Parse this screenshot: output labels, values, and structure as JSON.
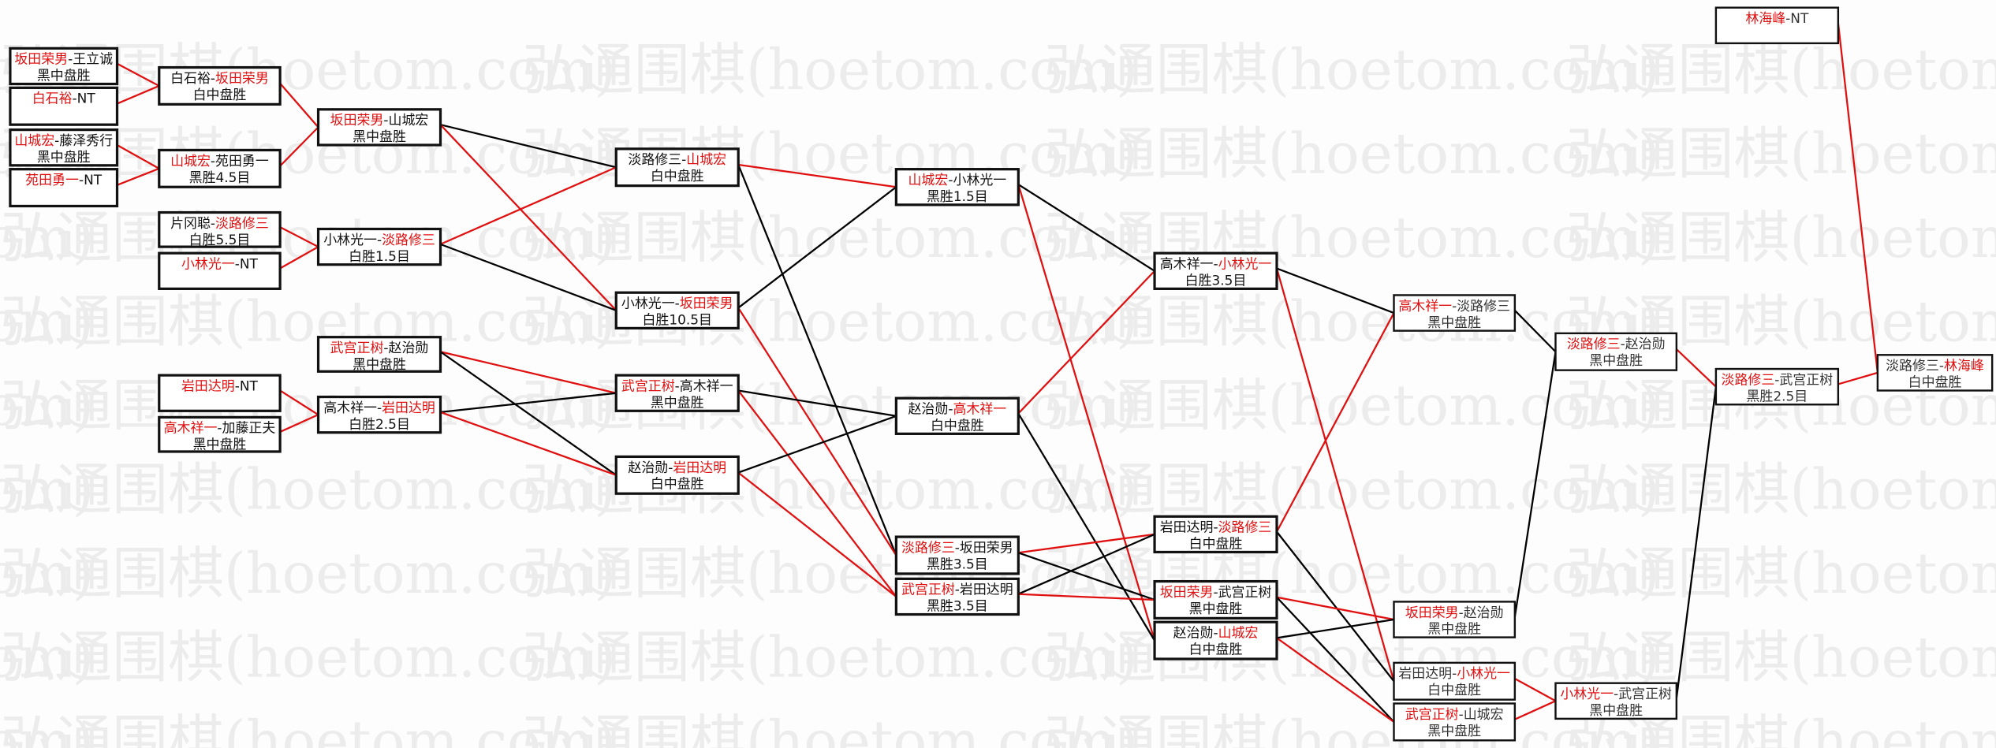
{
  "watermark": "弘通围棋(hoetom.com)",
  "colors": {
    "winner": "#e01010",
    "loser_line": "#000000",
    "winner_line": "#e01010",
    "box_border": "#111111"
  },
  "matches": {
    "A1": {
      "p1": "坂田荣男",
      "p2": "王立诚",
      "winner": 1,
      "result": "黑中盘胜"
    },
    "A2": {
      "p1": "白石裕",
      "p2": "NT",
      "winner": 1,
      "result": ""
    },
    "A3": {
      "p1": "山城宏",
      "p2": "藤泽秀行",
      "winner": 1,
      "result": "黑中盘胜"
    },
    "A4": {
      "p1": "苑田勇一",
      "p2": "NT",
      "winner": 1,
      "result": ""
    },
    "B1": {
      "p1": "白石裕",
      "p2": "坂田荣男",
      "winner": 2,
      "result": "白中盘胜"
    },
    "B2": {
      "p1": "山城宏",
      "p2": "苑田勇一",
      "winner": 1,
      "result": "黑胜4.5目"
    },
    "B3": {
      "p1": "片冈聪",
      "p2": "淡路修三",
      "winner": 2,
      "result": "白胜5.5目"
    },
    "B4": {
      "p1": "小林光一",
      "p2": "NT",
      "winner": 1,
      "result": ""
    },
    "B5": {
      "p1": "武宫正树",
      "p2": "赵治勋",
      "winner": 1,
      "result": "黑中盘胜"
    },
    "B6": {
      "p1": "岩田达明",
      "p2": "NT",
      "winner": 1,
      "result": ""
    },
    "B7": {
      "p1": "高木祥一",
      "p2": "加藤正夫",
      "winner": 1,
      "result": "黑中盘胜"
    },
    "C1": {
      "p1": "坂田荣男",
      "p2": "山城宏",
      "winner": 1,
      "result": "黑中盘胜"
    },
    "C2": {
      "p1": "小林光一",
      "p2": "淡路修三",
      "winner": 2,
      "result": "白胜1.5目"
    },
    "C3": {
      "p1": "高木祥一",
      "p2": "岩田达明",
      "winner": 2,
      "result": "白胜2.5目"
    },
    "D1": {
      "p1": "淡路修三",
      "p2": "山城宏",
      "winner": 2,
      "result": "白中盘胜"
    },
    "D2": {
      "p1": "小林光一",
      "p2": "坂田荣男",
      "winner": 2,
      "result": "白胜10.5目"
    },
    "D3": {
      "p1": "武宫正树",
      "p2": "高木祥一",
      "winner": 1,
      "result": "黑中盘胜"
    },
    "D4": {
      "p1": "赵治勋",
      "p2": "岩田达明",
      "winner": 2,
      "result": "白中盘胜"
    },
    "E1": {
      "p1": "山城宏",
      "p2": "小林光一",
      "winner": 1,
      "result": "黑胜1.5目"
    },
    "E2": {
      "p1": "赵治勋",
      "p2": "高木祥一",
      "winner": 2,
      "result": "白中盘胜"
    },
    "E3": {
      "p1": "淡路修三",
      "p2": "坂田荣男",
      "winner": 1,
      "result": "黑胜3.5目"
    },
    "E4": {
      "p1": "武宫正树",
      "p2": "岩田达明",
      "winner": 1,
      "result": "黑胜3.5目"
    },
    "F1": {
      "p1": "高木祥一",
      "p2": "小林光一",
      "winner": 2,
      "result": "白胜3.5目"
    },
    "F2": {
      "p1": "岩田达明",
      "p2": "淡路修三",
      "winner": 2,
      "result": "白中盘胜"
    },
    "F3": {
      "p1": "坂田荣男",
      "p2": "武宫正树",
      "winner": 1,
      "result": "黑中盘胜"
    },
    "F4": {
      "p1": "赵治勋",
      "p2": "山城宏",
      "winner": 2,
      "result": "白中盘胜"
    },
    "G1": {
      "p1": "高木祥一",
      "p2": "淡路修三",
      "winner": 1,
      "result": "黑中盘胜"
    },
    "G2": {
      "p1": "坂田荣男",
      "p2": "赵治勋",
      "winner": 1,
      "result": "黑中盘胜"
    },
    "G3": {
      "p1": "岩田达明",
      "p2": "小林光一",
      "winner": 2,
      "result": "白中盘胜"
    },
    "G4": {
      "p1": "武宫正树",
      "p2": "山城宏",
      "winner": 1,
      "result": "黑中盘胜"
    },
    "H1": {
      "p1": "淡路修三",
      "p2": "赵治勋",
      "winner": 1,
      "result": "黑中盘胜"
    },
    "H2": {
      "p1": "小林光一",
      "p2": "武宫正树",
      "winner": 1,
      "result": "黑中盘胜"
    },
    "I0": {
      "p1": "林海峰",
      "p2": "NT",
      "winner": 1,
      "result": ""
    },
    "I1": {
      "p1": "淡路修三",
      "p2": "武宫正树",
      "winner": 1,
      "result": "黑胜2.5目"
    },
    "J1": {
      "p1": "淡路修三",
      "p2": "林海峰",
      "winner": 2,
      "result": "白中盘胜"
    }
  },
  "links": [
    [
      "A1",
      "B1",
      "win"
    ],
    [
      "A2",
      "B1",
      "win"
    ],
    [
      "A3",
      "B2",
      "win"
    ],
    [
      "A4",
      "B2",
      "win"
    ],
    [
      "B1",
      "C1",
      "win"
    ],
    [
      "B2",
      "C1",
      "win"
    ],
    [
      "B3",
      "C2",
      "win"
    ],
    [
      "B4",
      "C2",
      "win"
    ],
    [
      "B6",
      "C3",
      "win"
    ],
    [
      "B7",
      "C3",
      "win"
    ],
    [
      "C1",
      "D1",
      "lose"
    ],
    [
      "C1",
      "D2",
      "win"
    ],
    [
      "C2",
      "D1",
      "win"
    ],
    [
      "C2",
      "D2",
      "lose"
    ],
    [
      "B5",
      "D3",
      "win"
    ],
    [
      "B5",
      "D4",
      "lose"
    ],
    [
      "C3",
      "D3",
      "lose"
    ],
    [
      "C3",
      "D4",
      "win"
    ],
    [
      "D1",
      "E1",
      "win"
    ],
    [
      "D1",
      "E3",
      "lose"
    ],
    [
      "D2",
      "E1",
      "lose"
    ],
    [
      "D2",
      "E3",
      "win"
    ],
    [
      "D3",
      "E2",
      "lose"
    ],
    [
      "D3",
      "E4",
      "win"
    ],
    [
      "D4",
      "E2",
      "lose"
    ],
    [
      "D4",
      "E4",
      "win"
    ],
    [
      "E1",
      "F1",
      "lose"
    ],
    [
      "E1",
      "F4",
      "win"
    ],
    [
      "E2",
      "F1",
      "win"
    ],
    [
      "E2",
      "F4",
      "lose"
    ],
    [
      "E3",
      "F2",
      "win"
    ],
    [
      "E3",
      "F3",
      "lose"
    ],
    [
      "E4",
      "F2",
      "lose"
    ],
    [
      "E4",
      "F3",
      "win"
    ],
    [
      "F1",
      "G1",
      "lose"
    ],
    [
      "F1",
      "G3",
      "win"
    ],
    [
      "F2",
      "G1",
      "win"
    ],
    [
      "F2",
      "G3",
      "lose"
    ],
    [
      "F3",
      "G2",
      "win"
    ],
    [
      "F3",
      "G4",
      "lose"
    ],
    [
      "F4",
      "G2",
      "lose"
    ],
    [
      "F4",
      "G4",
      "win"
    ],
    [
      "G1",
      "H1",
      "lose"
    ],
    [
      "G2",
      "H1",
      "lose"
    ],
    [
      "G3",
      "H2",
      "win"
    ],
    [
      "G4",
      "H2",
      "win"
    ],
    [
      "H1",
      "I1",
      "win"
    ],
    [
      "H2",
      "I1",
      "lose"
    ],
    [
      "I0",
      "J1",
      "win"
    ],
    [
      "I1",
      "J1",
      "win"
    ]
  ]
}
